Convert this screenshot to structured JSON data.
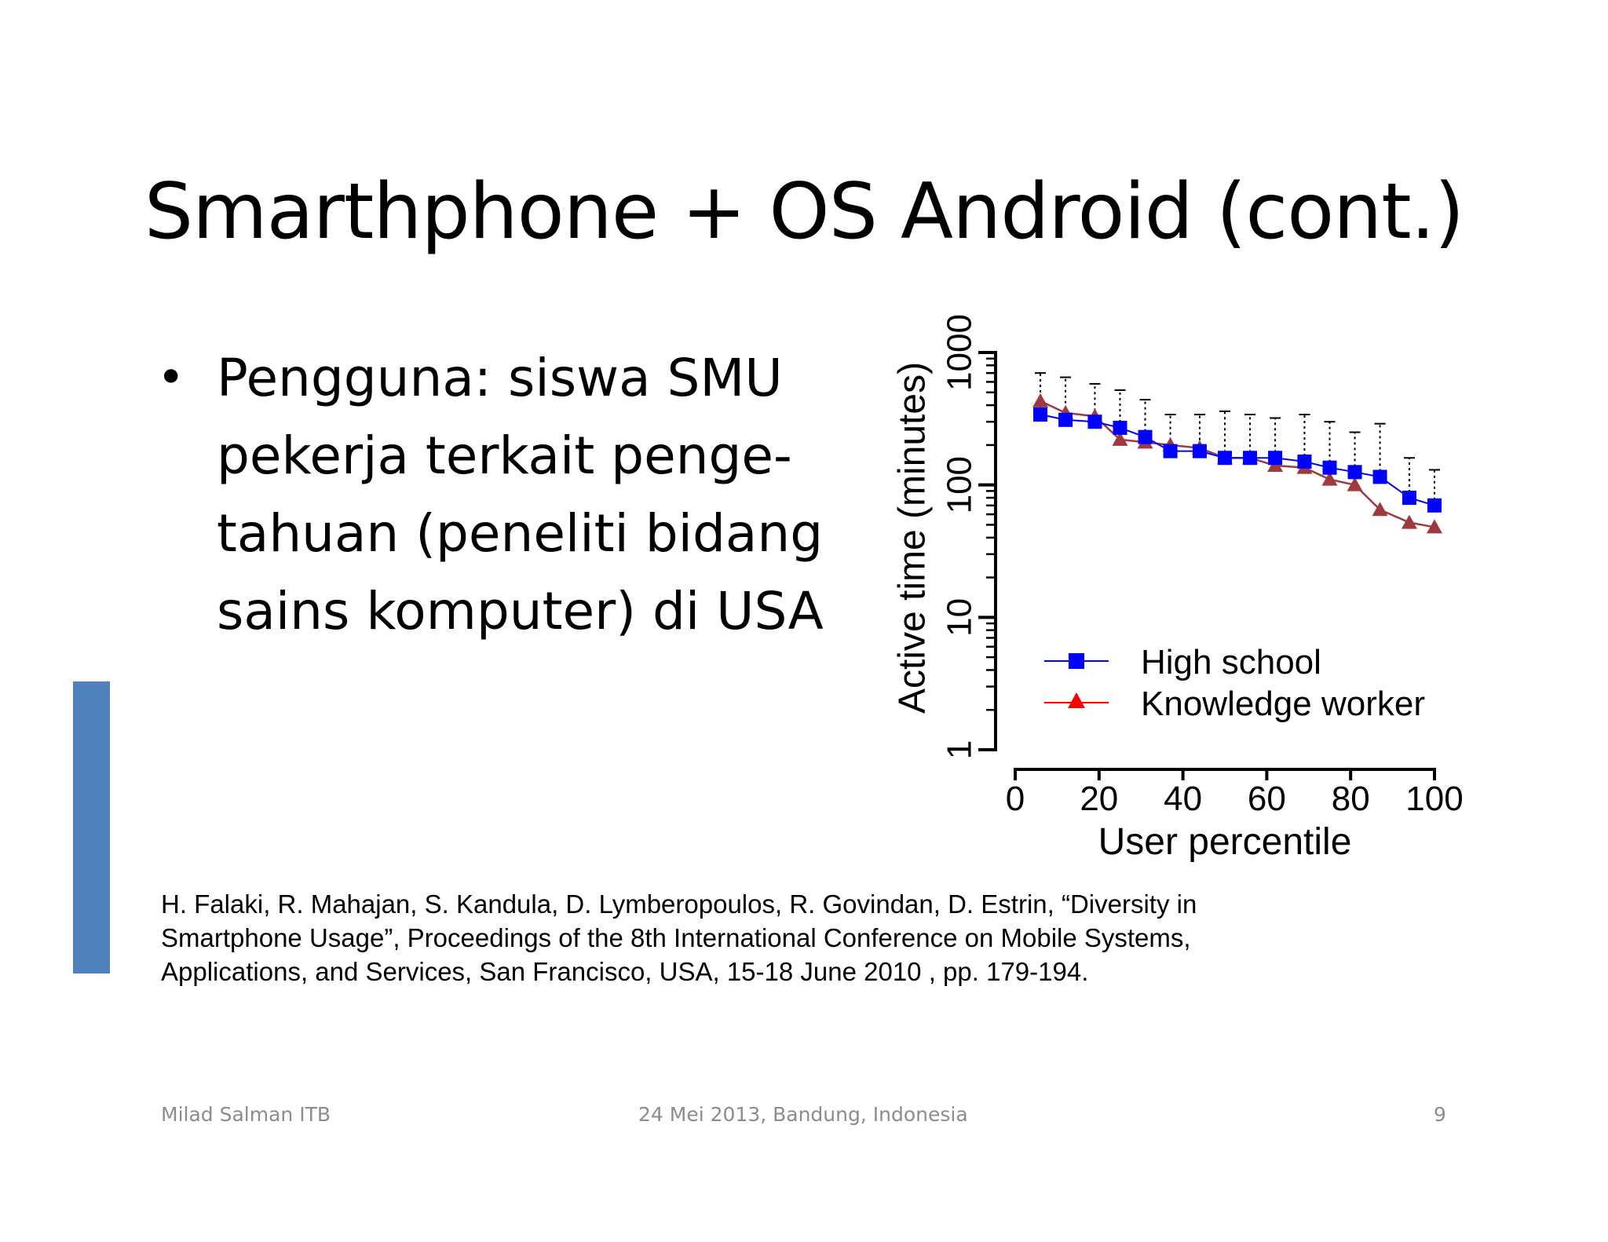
{
  "slide": {
    "title": "Smarthphone + OS Android (cont.)",
    "bullet": {
      "marker": "•",
      "lines": [
        "Pengguna: siswa SMU",
        "pekerja terkait penge-",
        "tahuan (peneliti bidang",
        "sains komputer) di USA"
      ]
    },
    "citation": {
      "lines": [
        "H. Falaki, R. Mahajan, S. Kandula, D. Lymberopoulos, R. Govindan, D. Estrin, “Diversity in",
        "Smartphone Usage”, Proceedings of the 8th International Conference on Mobile Systems,",
        "Applications, and Services, San Francisco, USA, 15-18 June 2010 , pp. 179-194."
      ]
    },
    "footer": {
      "left": "Milad Salman ITB",
      "center": "24 Mei 2013, Bandung, Indonesia",
      "right": "9"
    },
    "accent_color": "#4f81bd"
  },
  "chart_data": {
    "type": "line",
    "title": "",
    "xlabel": "User percentile",
    "ylabel": "Active time (minutes)",
    "x_scale": "linear",
    "y_scale": "log",
    "xlim": [
      0,
      100
    ],
    "ylim": [
      1,
      1000
    ],
    "x_ticks": [
      "0",
      "20",
      "40",
      "60",
      "80",
      "100"
    ],
    "y_ticks": [
      "1",
      "10",
      "100",
      "1000"
    ],
    "legend_position": "bottom-right",
    "x": [
      6,
      12,
      19,
      25,
      31,
      37,
      44,
      50,
      56,
      62,
      69,
      75,
      81,
      87,
      94,
      100
    ],
    "series": [
      {
        "name": "High school",
        "color": "#0000ff",
        "marker": "square",
        "values": [
          340,
          310,
          300,
          270,
          230,
          180,
          180,
          160,
          160,
          160,
          150,
          135,
          125,
          115,
          80,
          70
        ],
        "error_upper": [
          700,
          650,
          580,
          520,
          440,
          340,
          340,
          360,
          340,
          320,
          340,
          300,
          250,
          290,
          160,
          130
        ]
      },
      {
        "name": "Knowledge worker",
        "color": "#a0393f",
        "marker": "triangle",
        "values": [
          430,
          350,
          330,
          220,
          210,
          200,
          190,
          160,
          160,
          140,
          135,
          110,
          100,
          65,
          52,
          48
        ]
      }
    ]
  }
}
